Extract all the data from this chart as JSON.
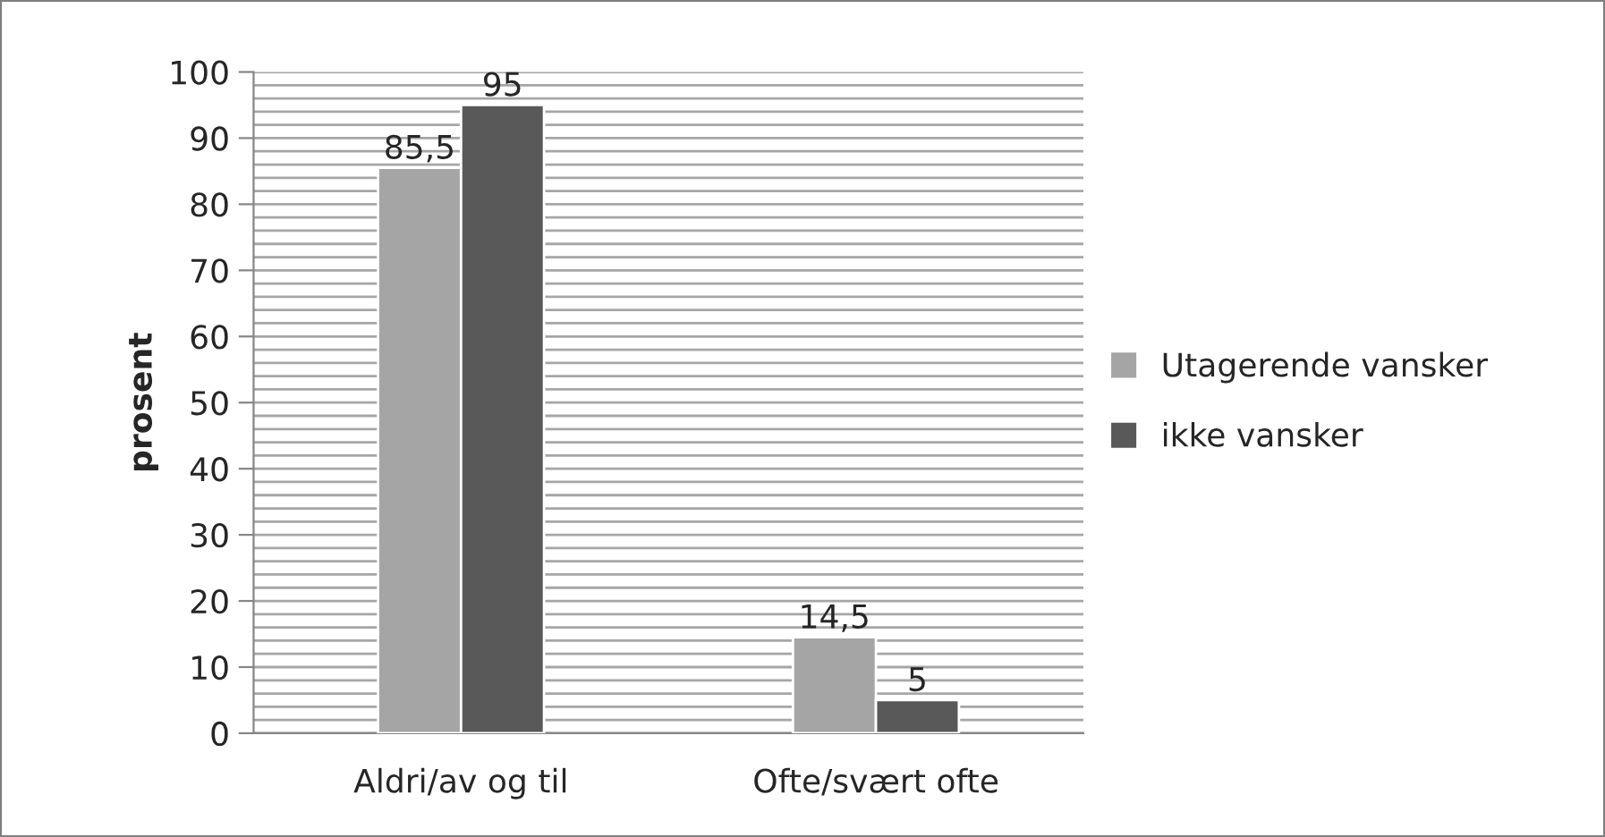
{
  "chart_data": {
    "type": "bar",
    "ylabel": "prosent",
    "categories": [
      "Aldri/av og til",
      "Ofte/svært ofte"
    ],
    "series": [
      {
        "name": "Utagerende vansker",
        "color": "#a5a5a5",
        "values": [
          85.5,
          14.5
        ],
        "value_labels": [
          "85,5",
          "14,5"
        ]
      },
      {
        "name": "ikke vansker",
        "color": "#595959",
        "values": [
          95,
          5
        ],
        "value_labels": [
          "95",
          "5"
        ]
      }
    ],
    "ylim": [
      0,
      100
    ],
    "yticks": [
      0,
      {
        "value": 2,
        "label": null
      },
      {
        "value": 4,
        "label": null
      },
      {
        "value": 6,
        "label": null
      },
      {
        "value": 8,
        "label": null
      },
      10,
      {
        "value": 12,
        "label": null
      },
      {
        "value": 14,
        "label": null
      },
      {
        "value": 16,
        "label": null
      },
      {
        "value": 18,
        "label": null
      },
      20,
      {
        "value": 22,
        "label": null
      },
      {
        "value": 24,
        "label": null
      },
      {
        "value": 26,
        "label": null
      },
      {
        "value": 28,
        "label": null
      },
      30,
      {
        "value": 32,
        "label": null
      },
      {
        "value": 34,
        "label": null
      },
      {
        "value": 36,
        "label": null
      },
      {
        "value": 38,
        "label": null
      },
      40,
      {
        "value": 42,
        "label": null
      },
      {
        "value": 44,
        "label": null
      },
      {
        "value": 46,
        "label": null
      },
      {
        "value": 48,
        "label": null
      },
      50,
      {
        "value": 52,
        "label": null
      },
      {
        "value": 54,
        "label": null
      },
      {
        "value": 56,
        "label": null
      },
      {
        "value": 58,
        "label": null
      },
      60,
      {
        "value": 62,
        "label": null
      },
      {
        "value": 64,
        "label": null
      },
      {
        "value": 66,
        "label": null
      },
      {
        "value": 68,
        "label": null
      },
      70,
      {
        "value": 72,
        "label": null
      },
      {
        "value": 74,
        "label": null
      },
      {
        "value": 76,
        "label": null
      },
      {
        "value": 78,
        "label": null
      },
      80,
      {
        "value": 82,
        "label": null
      },
      {
        "value": 84,
        "label": null
      },
      {
        "value": 86,
        "label": null
      },
      {
        "value": 88,
        "label": null
      },
      90,
      {
        "value": 92,
        "label": null
      },
      {
        "value": 94,
        "label": null
      },
      {
        "value": 96,
        "label": null
      },
      {
        "value": 98,
        "label": null
      },
      100
    ],
    "grid": "y",
    "legend": "right"
  }
}
